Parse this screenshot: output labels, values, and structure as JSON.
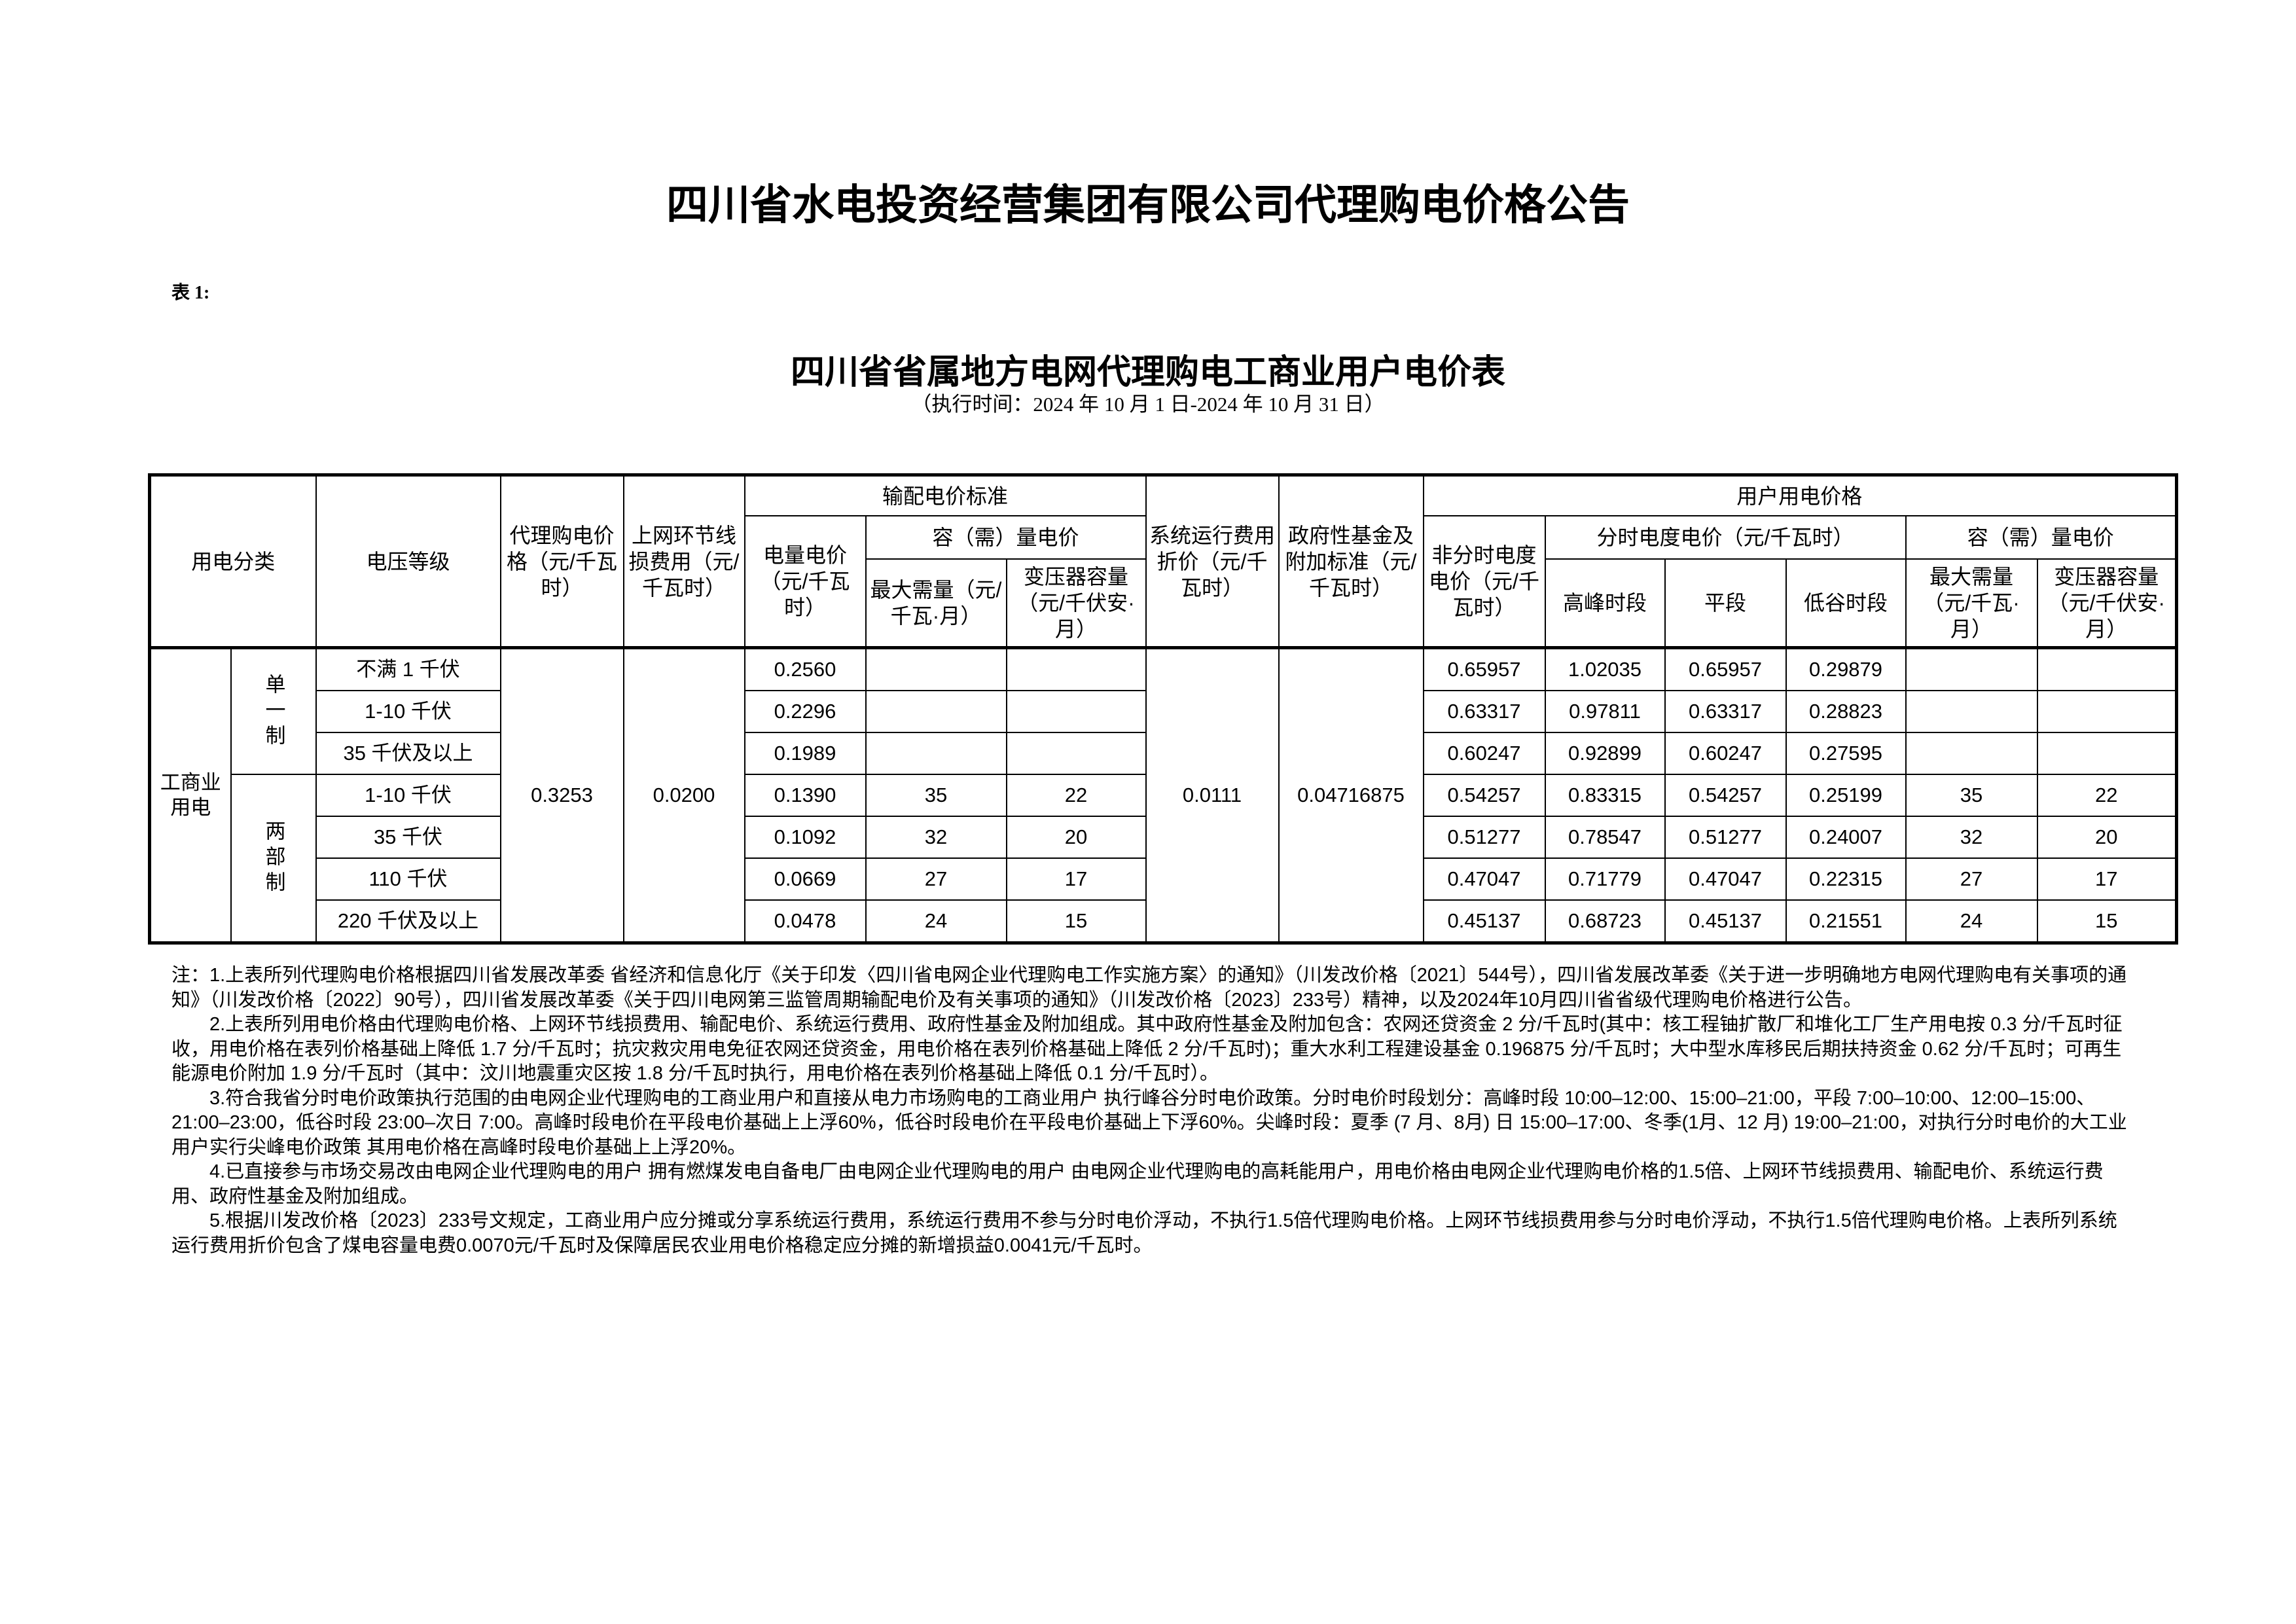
{
  "title": "四川省水电投资经营集团有限公司代理购电价格公告",
  "table_label": "表 1:",
  "subtitle": "四川省省属地方电网代理购电工商业用户电价表",
  "period": "（执行时间：2024 年 10 月 1 日-2024 年 10 月 31 日）",
  "headers": {
    "category": "用电分类",
    "voltage": "电压等级",
    "agency_price": "代理购电价格（元/千瓦时）",
    "loss_fee": "上网环节线损费用（元/千瓦时）",
    "td_standard": "输配电价标准",
    "energy_price": "电量电价（元/千瓦时）",
    "capacity_price": "容（需）量电价",
    "max_demand": "最大需量（元/千瓦·月）",
    "transformer": "变压器容量（元/千伏安·月）",
    "system_fee": "系统运行费用折价（元/千瓦时）",
    "gov_fund": "政府性基金及附加标准（元/千瓦时）",
    "user_price": "用户用电价格",
    "non_tou": "非分时电度电价（元/千瓦时）",
    "tou": "分时电度电价（元/千瓦时）",
    "peak": "高峰时段",
    "flat": "平段",
    "valley": "低谷时段",
    "user_capacity": "容（需）量电价",
    "user_max_demand": "最大需量（元/千瓦·月）",
    "user_transformer": "变压器容量（元/千伏安·月）"
  },
  "category": "工商业用电",
  "groups": [
    "单一制",
    "两部制"
  ],
  "shared": {
    "agency_price": "0.3253",
    "loss_fee": "0.0200",
    "system_fee": "0.0111",
    "gov_fund": "0.04716875"
  },
  "rows": [
    {
      "voltage": "不满 1 千伏",
      "energy": "0.2560",
      "max_demand": "",
      "transformer": "",
      "non_tou": "0.65957",
      "peak": "1.02035",
      "flat": "0.65957",
      "valley": "0.29879",
      "u_max": "",
      "u_trans": ""
    },
    {
      "voltage": "1-10 千伏",
      "energy": "0.2296",
      "max_demand": "",
      "transformer": "",
      "non_tou": "0.63317",
      "peak": "0.97811",
      "flat": "0.63317",
      "valley": "0.28823",
      "u_max": "",
      "u_trans": ""
    },
    {
      "voltage": "35 千伏及以上",
      "energy": "0.1989",
      "max_demand": "",
      "transformer": "",
      "non_tou": "0.60247",
      "peak": "0.92899",
      "flat": "0.60247",
      "valley": "0.27595",
      "u_max": "",
      "u_trans": ""
    },
    {
      "voltage": "1-10 千伏",
      "energy": "0.1390",
      "max_demand": "35",
      "transformer": "22",
      "non_tou": "0.54257",
      "peak": "0.83315",
      "flat": "0.54257",
      "valley": "0.25199",
      "u_max": "35",
      "u_trans": "22"
    },
    {
      "voltage": "35 千伏",
      "energy": "0.1092",
      "max_demand": "32",
      "transformer": "20",
      "non_tou": "0.51277",
      "peak": "0.78547",
      "flat": "0.51277",
      "valley": "0.24007",
      "u_max": "32",
      "u_trans": "20"
    },
    {
      "voltage": "110 千伏",
      "energy": "0.0669",
      "max_demand": "27",
      "transformer": "17",
      "non_tou": "0.47047",
      "peak": "0.71779",
      "flat": "0.47047",
      "valley": "0.22315",
      "u_max": "27",
      "u_trans": "17"
    },
    {
      "voltage": "220 千伏及以上",
      "energy": "0.0478",
      "max_demand": "24",
      "transformer": "15",
      "non_tou": "0.45137",
      "peak": "0.68723",
      "flat": "0.45137",
      "valley": "0.21551",
      "u_max": "24",
      "u_trans": "15"
    }
  ],
  "notes": [
    "注：1.上表所列代理购电价格根据四川省发展改革委 省经济和信息化厅《关于印发〈四川省电网企业代理购电工作实施方案〉的通知》（川发改价格〔2021〕544号），四川省发展改革委《关于进一步明确地方电网代理购电有关事项的通知》（川发改价格〔2022〕90号），四川省发展改革委《关于四川电网第三监管周期输配电价及有关事项的通知》（川发改价格〔2023〕233号）精神，以及2024年10月四川省省级代理购电价格进行公告。",
    "2.上表所列用电价格由代理购电价格、上网环节线损费用、输配电价、系统运行费用、政府性基金及附加组成。其中政府性基金及附加包含：农网还贷资金 2 分/千瓦时(其中：核工程铀扩散厂和堆化工厂生产用电按 0.3 分/千瓦时征收，用电价格在表列价格基础上降低 1.7 分/千瓦时；抗灾救灾用电免征农网还贷资金，用电价格在表列价格基础上降低 2 分/千瓦时)；重大水利工程建设基金 0.196875 分/千瓦时；大中型水库移民后期扶持资金 0.62 分/千瓦时；可再生能源电价附加 1.9 分/千瓦时（其中：汶川地震重灾区按 1.8 分/千瓦时执行，用电价格在表列价格基础上降低 0.1 分/千瓦时）。",
    "3.符合我省分时电价政策执行范围的由电网企业代理购电的工商业用户和直接从电力市场购电的工商业用户 执行峰谷分时电价政策。分时电价时段划分：高峰时段 10:00–12:00、15:00–21:00，平段 7:00–10:00、12:00–15:00、21:00–23:00，低谷时段 23:00–次日 7:00。高峰时段电价在平段电价基础上上浮60%，低谷时段电价在平段电价基础上下浮60%。尖峰时段：夏季 (7 月、8月) 日 15:00–17:00、冬季(1月、12 月) 19:00–21:00，对执行分时电价的大工业用户实行尖峰电价政策 其用电价格在高峰时段电价基础上上浮20%。",
    "4.已直接参与市场交易改由电网企业代理购电的用户 拥有燃煤发电自备电厂由电网企业代理购电的用户 由电网企业代理购电的高耗能用户，用电价格由电网企业代理购电价格的1.5倍、上网环节线损费用、输配电价、系统运行费用、政府性基金及附加组成。",
    "5.根据川发改价格〔2023〕233号文规定，工商业用户应分摊或分享系统运行费用，系统运行费用不参与分时电价浮动，不执行1.5倍代理购电价格。上网环节线损费用参与分时电价浮动，不执行1.5倍代理购电价格。上表所列系统运行费用折价包含了煤电容量电费0.0070元/千瓦时及保障居民农业用电价格稳定应分摊的新增损益0.0041元/千瓦时。"
  ]
}
